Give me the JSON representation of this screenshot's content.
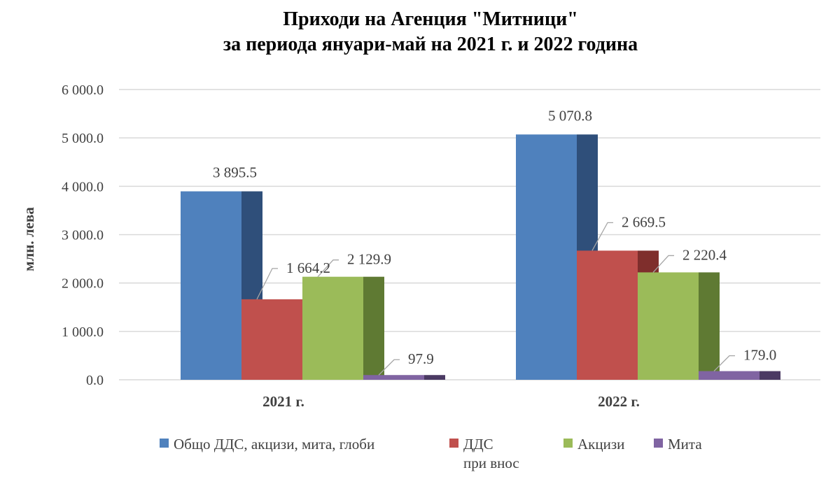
{
  "chart_data": {
    "type": "bar",
    "title_line1": "Приходи на Агенция \"Митници\"",
    "title_line2": "за периода януари-май на 2021 г. и 2022 година",
    "xlabel": "",
    "ylabel": "млн. лева",
    "ylim": [
      0,
      6000
    ],
    "yticks": [
      "0.0",
      "1 000.0",
      "2 000.0",
      "3 000.0",
      "4 000.0",
      "5 000.0",
      "6 000.0"
    ],
    "grid": true,
    "legend_position": "bottom",
    "categories": [
      "2021 г.",
      "2022 г."
    ],
    "series": [
      {
        "name": "Общо ДДС, акцизи, мита, глоби",
        "values": [
          3895.5,
          5070.8
        ],
        "labels": [
          "3 895.5",
          "5 070.8"
        ],
        "color": "#4f81bd",
        "side_color": "#2f4f7a"
      },
      {
        "name": "ДДС при внос",
        "name_lines": [
          "ДДС",
          "при внос"
        ],
        "values": [
          1664.2,
          2669.5
        ],
        "labels": [
          "1 664.2",
          "2 669.5"
        ],
        "color": "#c0504d",
        "side_color": "#7f2e2c"
      },
      {
        "name": "Акцизи",
        "values": [
          2129.9,
          2220.4
        ],
        "labels": [
          "2 129.9",
          "2 220.4"
        ],
        "color": "#9bbb59",
        "side_color": "#5f7a33"
      },
      {
        "name": "Мита",
        "values": [
          97.9,
          179.0
        ],
        "labels": [
          "97.9",
          "179.0"
        ],
        "color": "#8064a2",
        "side_color": "#4b3a63"
      }
    ]
  }
}
